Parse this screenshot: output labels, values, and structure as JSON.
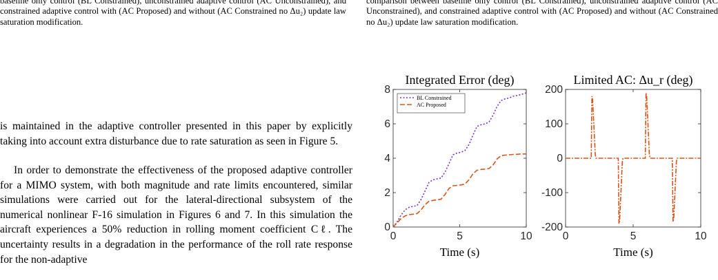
{
  "captions": {
    "left": "baseline only control (BL Constrained), unconstrained adaptive control (AC Unconstrained), and constrained adaptive control with (AC Proposed) and without (AC Constrained no Δu₂) update law saturation modification.",
    "right": "comparison between baseline only control (BL Constrained), unconstrained adaptive control (AC Unconstrained), and constrained adaptive control with (AC Proposed) and without (AC Constrained no Δu₂) update law saturation modification."
  },
  "body_text": {
    "p1": "is maintained in the adaptive controller presented in this paper by explicitly taking into account extra disturbance due to rate saturation as seen in Figure 5.",
    "p2": "In order to demonstrate the effectiveness of the proposed adaptive controller for a MIMO system, with both magnitude and rate limits encountered, similar simulations were carried out for the lateral-directional subsystem of the numerical nonlinear F-16 simulation in Figures 6 and 7. In this simulation the aircraft experiences a 50% reduction in rolling moment coefficient Cℓ. The uncertainty results in a degradation in the performance of the roll rate response for the non-adaptive"
  },
  "colors": {
    "bl": "#7b2fbe",
    "ac": "#d95319"
  },
  "chart_data": [
    {
      "type": "line",
      "title": "Integrated Error (deg)",
      "xlabel": "Time (s)",
      "ylabel": "",
      "xlim": [
        0,
        10
      ],
      "ylim": [
        0,
        8
      ],
      "xticks": [
        "0",
        "5",
        "10"
      ],
      "yticks": [
        "0",
        "2",
        "4",
        "6",
        "8"
      ],
      "legend": "top-left",
      "series": [
        {
          "name": "BL Constrained",
          "x": [
            0,
            0.3,
            0.6,
            0.9,
            1.2,
            1.5,
            1.8,
            2.1,
            2.4,
            2.7,
            3.0,
            3.3,
            3.6,
            3.9,
            4.2,
            4.5,
            4.8,
            5.1,
            5.4,
            5.7,
            6.0,
            6.3,
            6.6,
            6.9,
            7.2,
            7.5,
            7.8,
            8.1,
            8.4,
            8.7,
            9.0,
            9.3,
            9.6,
            10.0
          ],
          "y": [
            0,
            0.3,
            0.7,
            1.0,
            1.15,
            1.2,
            1.25,
            1.6,
            2.1,
            2.6,
            2.75,
            2.8,
            2.85,
            3.2,
            3.7,
            4.2,
            4.3,
            4.35,
            4.45,
            4.8,
            5.35,
            5.85,
            5.95,
            6.0,
            6.1,
            6.5,
            7.0,
            7.35,
            7.45,
            7.5,
            7.6,
            7.65,
            7.7,
            7.8
          ]
        },
        {
          "name": "AC Proposed",
          "x": [
            0,
            0.3,
            0.6,
            0.9,
            1.2,
            1.5,
            1.8,
            2.1,
            2.4,
            2.7,
            3.0,
            3.3,
            3.6,
            3.9,
            4.2,
            4.5,
            4.8,
            5.1,
            5.4,
            5.7,
            6.0,
            6.3,
            6.6,
            6.9,
            7.2,
            7.5,
            7.8,
            8.1,
            8.4,
            8.7,
            9.0,
            9.3,
            9.6,
            10.0
          ],
          "y": [
            0,
            0.25,
            0.5,
            0.65,
            0.72,
            0.75,
            0.78,
            1.0,
            1.3,
            1.5,
            1.55,
            1.58,
            1.62,
            1.9,
            2.25,
            2.4,
            2.42,
            2.45,
            2.5,
            2.75,
            3.1,
            3.3,
            3.35,
            3.37,
            3.4,
            3.6,
            3.95,
            4.15,
            4.18,
            4.2,
            4.22,
            4.23,
            4.25,
            4.25
          ]
        }
      ]
    },
    {
      "type": "line",
      "title": "Limited AC: Δu_r (deg)",
      "xlabel": "Time (s)",
      "ylabel": "",
      "xlim": [
        0,
        10
      ],
      "ylim": [
        -200,
        200
      ],
      "xticks": [
        "0",
        "5",
        "10"
      ],
      "yticks": [
        "-200",
        "-100",
        "0",
        "100",
        "200"
      ],
      "series": [
        {
          "name": "",
          "x": [
            0,
            1.9,
            1.95,
            2.0,
            2.2,
            2.25,
            3.9,
            3.95,
            4.0,
            4.2,
            4.25,
            5.9,
            5.95,
            6.0,
            6.2,
            6.25,
            7.9,
            7.95,
            8.0,
            8.2,
            8.25,
            10.0
          ],
          "y": [
            0,
            0,
            180,
            170,
            10,
            0,
            0,
            -190,
            -180,
            -10,
            0,
            0,
            190,
            180,
            10,
            0,
            0,
            -185,
            -175,
            -10,
            0,
            0
          ]
        }
      ]
    }
  ]
}
